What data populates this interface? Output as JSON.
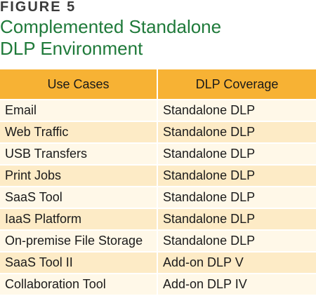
{
  "figure_label": "FIGURE 5",
  "title": "Complemented Standalone\nDLP Environment",
  "colors": {
    "title": "#1f7a3a",
    "header_bg": "#f7b234",
    "row_light": "#fff8e8",
    "row_dark": "#fdebc6"
  },
  "table": {
    "headers": [
      "Use Cases",
      "DLP Coverage"
    ],
    "rows": [
      [
        "Email",
        "Standalone DLP"
      ],
      [
        "Web Traffic",
        "Standalone DLP"
      ],
      [
        "USB Transfers",
        "Standalone DLP"
      ],
      [
        "Print Jobs",
        "Standalone DLP"
      ],
      [
        "SaaS Tool",
        "Standalone DLP"
      ],
      [
        "IaaS Platform",
        "Standalone DLP"
      ],
      [
        "On-premise File Storage",
        "Standalone DLP"
      ],
      [
        "SaaS Tool II",
        "Add-on DLP V"
      ],
      [
        "Collaboration Tool",
        "Add-on DLP IV"
      ]
    ]
  }
}
